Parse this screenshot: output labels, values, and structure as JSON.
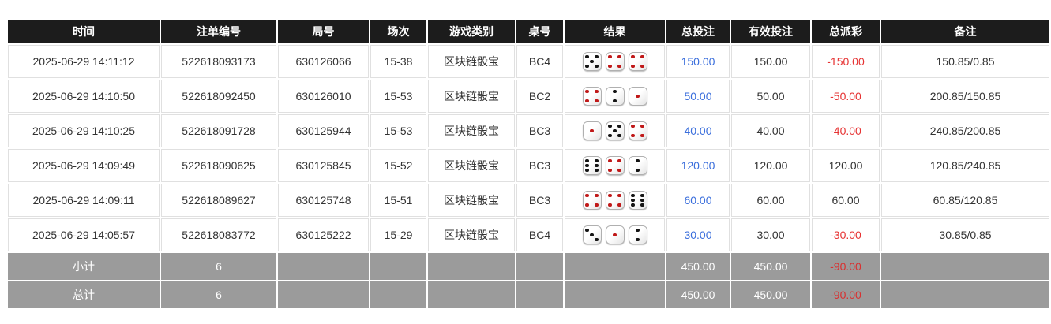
{
  "table": {
    "columns": [
      {
        "key": "time",
        "label": "时间"
      },
      {
        "key": "bet_id",
        "label": "注单编号"
      },
      {
        "key": "round",
        "label": "局号"
      },
      {
        "key": "session",
        "label": "场次"
      },
      {
        "key": "game",
        "label": "游戏类别"
      },
      {
        "key": "table_no",
        "label": "桌号"
      },
      {
        "key": "result",
        "label": "结果"
      },
      {
        "key": "total_bet",
        "label": "总投注"
      },
      {
        "key": "valid_bet",
        "label": "有效投注"
      },
      {
        "key": "payout",
        "label": "总派彩"
      },
      {
        "key": "remark",
        "label": "备注"
      }
    ],
    "rows": [
      {
        "time": "2025-06-29 14:11:12",
        "bet_id": "522618093173",
        "round": "630126066",
        "session": "15-38",
        "game": "区块链骰宝",
        "table_no": "BC4",
        "dice": [
          5,
          4,
          4
        ],
        "total_bet": "150.00",
        "valid_bet": "150.00",
        "payout": "-150.00",
        "remark": "150.85/0.85"
      },
      {
        "time": "2025-06-29 14:10:50",
        "bet_id": "522618092450",
        "round": "630126010",
        "session": "15-53",
        "game": "区块链骰宝",
        "table_no": "BC2",
        "dice": [
          4,
          2,
          1
        ],
        "total_bet": "50.00",
        "valid_bet": "50.00",
        "payout": "-50.00",
        "remark": "200.85/150.85"
      },
      {
        "time": "2025-06-29 14:10:25",
        "bet_id": "522618091728",
        "round": "630125944",
        "session": "15-53",
        "game": "区块链骰宝",
        "table_no": "BC3",
        "dice": [
          1,
          5,
          4
        ],
        "total_bet": "40.00",
        "valid_bet": "40.00",
        "payout": "-40.00",
        "remark": "240.85/200.85"
      },
      {
        "time": "2025-06-29 14:09:49",
        "bet_id": "522618090625",
        "round": "630125845",
        "session": "15-52",
        "game": "区块链骰宝",
        "table_no": "BC3",
        "dice": [
          6,
          4,
          2
        ],
        "total_bet": "120.00",
        "valid_bet": "120.00",
        "payout": "120.00",
        "remark": "120.85/240.85"
      },
      {
        "time": "2025-06-29 14:09:11",
        "bet_id": "522618089627",
        "round": "630125748",
        "session": "15-51",
        "game": "区块链骰宝",
        "table_no": "BC3",
        "dice": [
          4,
          4,
          6
        ],
        "total_bet": "60.00",
        "valid_bet": "60.00",
        "payout": "60.00",
        "remark": "60.85/120.85"
      },
      {
        "time": "2025-06-29 14:05:57",
        "bet_id": "522618083772",
        "round": "630125222",
        "session": "15-29",
        "game": "区块链骰宝",
        "table_no": "BC4",
        "dice": [
          3,
          1,
          2
        ],
        "total_bet": "30.00",
        "valid_bet": "30.00",
        "payout": "-30.00",
        "remark": "30.85/0.85"
      }
    ],
    "footer": [
      {
        "label": "小计",
        "count": "6",
        "total_bet": "450.00",
        "valid_bet": "450.00",
        "payout": "-90.00"
      },
      {
        "label": "总计",
        "count": "6",
        "total_bet": "450.00",
        "valid_bet": "450.00",
        "payout": "-90.00"
      }
    ]
  },
  "colors": {
    "header_bg": "#1c1c1c",
    "bet_amount_blue": "#3a6edc",
    "negative_red": "#e63333",
    "footer_bg": "#9b9b9b",
    "dice_red_pip": "#c01818",
    "dice_black_pip": "#141414"
  },
  "dice_red_values": [
    1,
    4
  ]
}
